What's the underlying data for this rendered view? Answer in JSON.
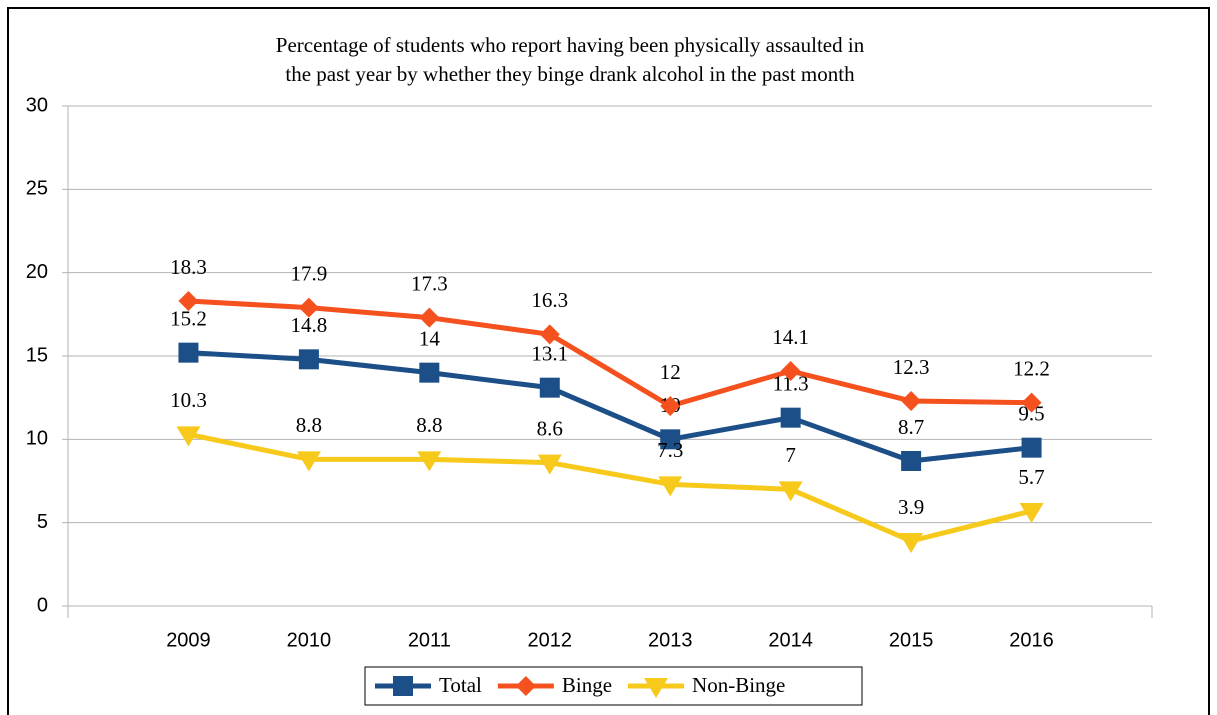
{
  "chart_data": {
    "type": "line",
    "title": "Percentage of students who report having been physically assaulted in\nthe past year by whether they binge drank alcohol in the past month",
    "categories": [
      "2009",
      "2010",
      "2011",
      "2012",
      "2013",
      "2014",
      "2015",
      "2016"
    ],
    "series": [
      {
        "name": "Total",
        "color": "#1c4f88",
        "marker": "square",
        "values": [
          15.2,
          14.8,
          14,
          13.1,
          10,
          11.3,
          8.7,
          9.5
        ]
      },
      {
        "name": "Binge",
        "color": "#f5511e",
        "marker": "diamond",
        "values": [
          18.3,
          17.9,
          17.3,
          16.3,
          12,
          14.1,
          12.3,
          12.2
        ]
      },
      {
        "name": "Non-Binge",
        "color": "#f7c91b",
        "marker": "triangle-down",
        "values": [
          10.3,
          8.8,
          8.8,
          8.6,
          7.3,
          7,
          3.9,
          5.7
        ]
      }
    ],
    "ylim": [
      0,
      30
    ],
    "yticks": [
      0,
      5,
      10,
      15,
      20,
      25,
      30
    ],
    "grid": true,
    "legend": "bottom"
  }
}
